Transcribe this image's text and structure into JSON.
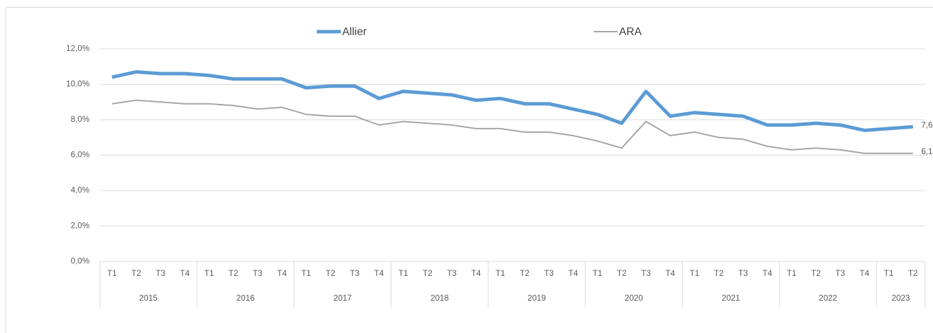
{
  "chart_data": {
    "type": "line",
    "categories": [
      "T1",
      "T2",
      "T3",
      "T4",
      "T1",
      "T2",
      "T3",
      "T4",
      "T1",
      "T2",
      "T3",
      "T4",
      "T1",
      "T2",
      "T3",
      "T4",
      "T1",
      "T2",
      "T3",
      "T4",
      "T1",
      "T2",
      "T3",
      "T4",
      "T1",
      "T2",
      "T3",
      "T4",
      "T1",
      "T2",
      "T3",
      "T4",
      "T1",
      "T2"
    ],
    "x_groups": [
      {
        "label": "2015",
        "span": 4
      },
      {
        "label": "2016",
        "span": 4
      },
      {
        "label": "2017",
        "span": 4
      },
      {
        "label": "2018",
        "span": 4
      },
      {
        "label": "2019",
        "span": 4
      },
      {
        "label": "2020",
        "span": 4
      },
      {
        "label": "2021",
        "span": 4
      },
      {
        "label": "2022",
        "span": 4
      },
      {
        "label": "2023",
        "span": 2
      }
    ],
    "series": [
      {
        "name": "Allier",
        "color": "#5b9bd5",
        "width": 5,
        "values": [
          10.4,
          10.7,
          10.6,
          10.6,
          10.5,
          10.3,
          10.3,
          10.3,
          9.8,
          9.9,
          9.9,
          9.2,
          9.6,
          9.5,
          9.4,
          9.1,
          9.2,
          8.9,
          8.9,
          8.6,
          8.3,
          7.8,
          9.6,
          8.2,
          8.4,
          8.3,
          8.2,
          7.7,
          7.7,
          7.8,
          7.7,
          7.4,
          7.5,
          7.6
        ],
        "value_labels": [
          null,
          null,
          null,
          null,
          null,
          null,
          null,
          null,
          null,
          null,
          null,
          null,
          null,
          null,
          null,
          null,
          null,
          null,
          null,
          null,
          null,
          null,
          null,
          null,
          null,
          null,
          null,
          null,
          null,
          null,
          null,
          null,
          null,
          "7,6"
        ]
      },
      {
        "name": "ARA",
        "color": "#a5a5a5",
        "width": 2,
        "values": [
          8.9,
          9.1,
          9.0,
          8.9,
          8.9,
          8.8,
          8.6,
          8.7,
          8.3,
          8.2,
          8.2,
          7.7,
          7.9,
          7.8,
          7.7,
          7.5,
          7.5,
          7.3,
          7.3,
          7.1,
          6.8,
          6.4,
          7.9,
          7.1,
          7.3,
          7.0,
          6.9,
          6.5,
          6.3,
          6.4,
          6.3,
          6.1,
          6.1,
          6.1
        ],
        "value_labels": [
          null,
          null,
          null,
          null,
          null,
          null,
          null,
          null,
          null,
          null,
          null,
          null,
          null,
          null,
          null,
          null,
          null,
          null,
          null,
          null,
          null,
          null,
          null,
          null,
          null,
          null,
          null,
          null,
          null,
          null,
          null,
          null,
          null,
          "6,1"
        ]
      }
    ],
    "ylim": [
      0,
      12
    ],
    "yticks": [
      {
        "value": 0,
        "label": "0,0%"
      },
      {
        "value": 2,
        "label": "2,0%"
      },
      {
        "value": 4,
        "label": "4,0%"
      },
      {
        "value": 6,
        "label": "6,0%"
      },
      {
        "value": 8,
        "label": "8,0%"
      },
      {
        "value": 10,
        "label": "10,0%"
      },
      {
        "value": 12,
        "label": "12,0%"
      }
    ],
    "grid": true,
    "legend": "top"
  }
}
